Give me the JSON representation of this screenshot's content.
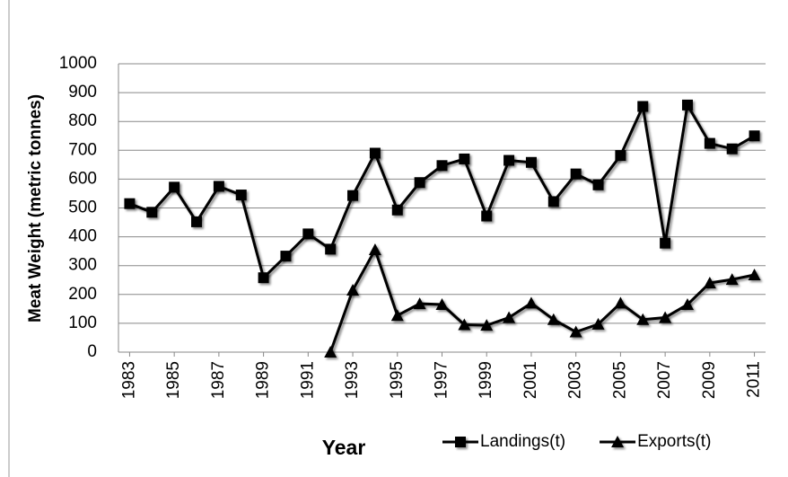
{
  "chart_data": {
    "type": "line",
    "x_label": "Year",
    "y_label": "Meat Weight (metric tonnes)",
    "x": [
      1983,
      1984,
      1985,
      1986,
      1987,
      1988,
      1989,
      1990,
      1991,
      1992,
      1993,
      1994,
      1995,
      1996,
      1997,
      1998,
      1999,
      2000,
      2001,
      2002,
      2003,
      2004,
      2005,
      2006,
      2007,
      2008,
      2009,
      2010,
      2011
    ],
    "series": [
      {
        "name": "Landings(t)",
        "color": "#000000",
        "marker": "square",
        "values": [
          515,
          485,
          572,
          452,
          575,
          545,
          258,
          333,
          410,
          357,
          543,
          690,
          493,
          588,
          647,
          670,
          472,
          665,
          658,
          522,
          618,
          580,
          682,
          852,
          378,
          857,
          724,
          705,
          750
        ]
      },
      {
        "name": "Exports(t)",
        "color": "#000000",
        "marker": "triangle",
        "values": [
          null,
          null,
          null,
          null,
          null,
          null,
          null,
          null,
          null,
          0,
          215,
          355,
          127,
          168,
          165,
          95,
          93,
          120,
          170,
          113,
          70,
          97,
          170,
          113,
          120,
          165,
          240,
          252,
          268
        ]
      }
    ],
    "xlim": [
      1982.5,
      2011.5
    ],
    "xticks": [
      1983,
      1985,
      1987,
      1989,
      1991,
      1993,
      1995,
      1997,
      1999,
      2001,
      2003,
      2005,
      2007,
      2009,
      2011
    ],
    "ylim": [
      0,
      1000
    ],
    "yticks": [
      0,
      100,
      200,
      300,
      400,
      500,
      600,
      700,
      800,
      900,
      1000
    ],
    "grid": true,
    "legend": "bottom"
  }
}
